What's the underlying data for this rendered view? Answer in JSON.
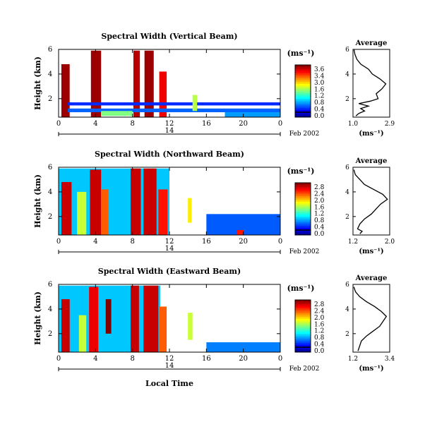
{
  "figure": {
    "xlabel_bottom": "Local Time",
    "date_label": "Feb 2002",
    "day_label": "14",
    "colorbar_unit": "(ms⁻¹)",
    "avg_title": "Average",
    "avg_unit": "(ms⁻¹)",
    "ylabel": "Height (km)"
  },
  "chart_data": [
    {
      "type": "heatmap",
      "title": "Spectral Width (Vertical Beam)",
      "ylabel": "Height (km)",
      "x_ticks": [
        "0",
        "4",
        "8",
        "12",
        "16",
        "20",
        "0"
      ],
      "xlim": [
        0,
        24
      ],
      "y_ticks": [
        "6",
        "4",
        "2"
      ],
      "ylim": [
        0.5,
        6
      ],
      "colorbar": {
        "ticks": [
          "3.6",
          "3.4",
          "3.0",
          "1.6",
          "1.2",
          "0.8",
          "0.4",
          "0.0"
        ],
        "range": [
          0,
          3.6
        ]
      },
      "blocks": [
        {
          "x0": 0.3,
          "x1": 1.2,
          "y0": 0.5,
          "y1": 4.8,
          "v": 3.5
        },
        {
          "x0": 3.5,
          "x1": 4.6,
          "y0": 0.5,
          "y1": 5.9,
          "v": 3.5
        },
        {
          "x0": 8.1,
          "x1": 8.8,
          "y0": 0.5,
          "y1": 5.9,
          "v": 3.4
        },
        {
          "x0": 9.3,
          "x1": 10.3,
          "y0": 0.5,
          "y1": 5.9,
          "v": 3.5
        },
        {
          "x0": 10.9,
          "x1": 11.7,
          "y0": 0.5,
          "y1": 4.2,
          "v": 3.2
        },
        {
          "x0": 1.0,
          "x1": 24.0,
          "y0": 0.9,
          "y1": 1.2,
          "v": 0.8
        },
        {
          "x0": 1.0,
          "x1": 24.0,
          "y0": 1.45,
          "y1": 1.7,
          "v": 0.6
        },
        {
          "x0": 4.6,
          "x1": 8.0,
          "y0": 0.6,
          "y1": 1.0,
          "v": 1.8
        },
        {
          "x0": 14.5,
          "x1": 15.0,
          "y0": 1.0,
          "y1": 2.3,
          "v": 2.0
        },
        {
          "x0": 18.0,
          "x1": 24.0,
          "y0": 0.5,
          "y1": 0.9,
          "v": 1.0
        }
      ],
      "average": {
        "xlim": [
          1.0,
          2.9
        ],
        "x_ticks": [
          "1.0",
          "2.9"
        ],
        "ylim": [
          0.5,
          6
        ],
        "y_ticks": [
          "6",
          "4",
          "2"
        ],
        "profile": [
          [
            1.15,
            0.6
          ],
          [
            1.3,
            0.8
          ],
          [
            1.6,
            1.0
          ],
          [
            1.4,
            1.2
          ],
          [
            1.8,
            1.4
          ],
          [
            1.3,
            1.6
          ],
          [
            1.9,
            1.8
          ],
          [
            2.3,
            2.0
          ],
          [
            2.2,
            2.4
          ],
          [
            2.5,
            2.8
          ],
          [
            2.7,
            3.2
          ],
          [
            2.4,
            3.6
          ],
          [
            2.0,
            4.0
          ],
          [
            1.8,
            4.4
          ],
          [
            1.4,
            4.8
          ],
          [
            1.2,
            5.2
          ],
          [
            1.1,
            5.6
          ],
          [
            1.05,
            6.0
          ]
        ]
      }
    },
    {
      "type": "heatmap",
      "title": "Spectral Width (Northward Beam)",
      "ylabel": "Height (km)",
      "x_ticks": [
        "0",
        "4",
        "8",
        "12",
        "16",
        "20",
        "0"
      ],
      "xlim": [
        0,
        24
      ],
      "y_ticks": [
        "6",
        "4",
        "2"
      ],
      "ylim": [
        0.5,
        6
      ],
      "colorbar": {
        "ticks": [
          "2.8",
          "2.4",
          "2.0",
          "1.6",
          "1.2",
          "0.8",
          "0.4",
          "0.0"
        ],
        "range": [
          0,
          2.8
        ]
      },
      "blocks": [
        {
          "x0": 0.0,
          "x1": 12.0,
          "y0": 0.5,
          "y1": 5.9,
          "v": 0.9
        },
        {
          "x0": 0.3,
          "x1": 1.4,
          "y0": 0.5,
          "y1": 4.8,
          "v": 2.6
        },
        {
          "x0": 2.0,
          "x1": 3.0,
          "y0": 0.5,
          "y1": 4.0,
          "v": 1.6
        },
        {
          "x0": 3.4,
          "x1": 4.6,
          "y0": 0.5,
          "y1": 5.8,
          "v": 2.6
        },
        {
          "x0": 4.6,
          "x1": 5.4,
          "y0": 0.5,
          "y1": 4.2,
          "v": 2.2
        },
        {
          "x0": 7.8,
          "x1": 8.9,
          "y0": 0.5,
          "y1": 5.9,
          "v": 2.6
        },
        {
          "x0": 9.2,
          "x1": 10.6,
          "y0": 0.5,
          "y1": 5.9,
          "v": 2.6
        },
        {
          "x0": 10.8,
          "x1": 11.8,
          "y0": 0.5,
          "y1": 4.2,
          "v": 2.4
        },
        {
          "x0": 14.0,
          "x1": 14.4,
          "y0": 1.5,
          "y1": 3.5,
          "v": 1.8
        },
        {
          "x0": 16.0,
          "x1": 24.0,
          "y0": 0.5,
          "y1": 2.2,
          "v": 0.6
        },
        {
          "x0": 19.3,
          "x1": 20.1,
          "y0": 0.5,
          "y1": 0.9,
          "v": 2.4
        }
      ],
      "average": {
        "xlim": [
          1.2,
          2.0
        ],
        "x_ticks": [
          "1.2",
          "2.0"
        ],
        "ylim": [
          0.5,
          6
        ],
        "y_ticks": [
          "6",
          "4",
          "2"
        ],
        "profile": [
          [
            1.35,
            0.6
          ],
          [
            1.4,
            0.8
          ],
          [
            1.3,
            1.0
          ],
          [
            1.35,
            1.4
          ],
          [
            1.45,
            1.8
          ],
          [
            1.6,
            2.2
          ],
          [
            1.7,
            2.6
          ],
          [
            1.8,
            3.0
          ],
          [
            1.95,
            3.4
          ],
          [
            1.85,
            3.8
          ],
          [
            1.65,
            4.2
          ],
          [
            1.45,
            4.6
          ],
          [
            1.35,
            5.0
          ],
          [
            1.25,
            5.4
          ],
          [
            1.22,
            5.8
          ]
        ]
      }
    },
    {
      "type": "heatmap",
      "title": "Spectral Width (Eastward Beam)",
      "ylabel": "Height (km)",
      "x_ticks": [
        "0",
        "4",
        "8",
        "12",
        "16",
        "20",
        "0"
      ],
      "xlim": [
        0,
        24
      ],
      "y_ticks": [
        "6",
        "4",
        "2"
      ],
      "ylim": [
        0.5,
        6
      ],
      "colorbar": {
        "ticks": [
          "2.8",
          "2.4",
          "2.0",
          "1.6",
          "1.2",
          "0.8",
          "0.4",
          "0.0"
        ],
        "range": [
          0,
          2.8
        ]
      },
      "blocks": [
        {
          "x0": 0.0,
          "x1": 11.0,
          "y0": 0.5,
          "y1": 5.9,
          "v": 0.9
        },
        {
          "x0": 0.3,
          "x1": 1.2,
          "y0": 0.5,
          "y1": 4.8,
          "v": 2.6
        },
        {
          "x0": 2.2,
          "x1": 3.0,
          "y0": 0.5,
          "y1": 3.5,
          "v": 1.6
        },
        {
          "x0": 3.3,
          "x1": 4.3,
          "y0": 0.5,
          "y1": 5.8,
          "v": 2.5
        },
        {
          "x0": 5.1,
          "x1": 5.7,
          "y0": 2.0,
          "y1": 4.8,
          "v": 2.8
        },
        {
          "x0": 7.8,
          "x1": 8.7,
          "y0": 0.5,
          "y1": 5.9,
          "v": 2.6
        },
        {
          "x0": 9.2,
          "x1": 10.8,
          "y0": 0.5,
          "y1": 5.9,
          "v": 2.6
        },
        {
          "x0": 10.9,
          "x1": 11.7,
          "y0": 0.5,
          "y1": 4.2,
          "v": 2.2
        },
        {
          "x0": 14.0,
          "x1": 14.5,
          "y0": 1.5,
          "y1": 3.7,
          "v": 1.6
        },
        {
          "x0": 16.0,
          "x1": 24.0,
          "y0": 0.5,
          "y1": 1.3,
          "v": 0.7
        }
      ],
      "average": {
        "xlim": [
          1.2,
          3.4
        ],
        "x_ticks": [
          "1.2",
          "3.4"
        ],
        "ylim": [
          0.5,
          6
        ],
        "y_ticks": [
          "6",
          "4",
          "2"
        ],
        "profile": [
          [
            1.5,
            0.6
          ],
          [
            1.6,
            1.0
          ],
          [
            1.7,
            1.4
          ],
          [
            2.0,
            1.8
          ],
          [
            2.4,
            2.2
          ],
          [
            2.8,
            2.6
          ],
          [
            3.0,
            3.0
          ],
          [
            3.2,
            3.4
          ],
          [
            2.9,
            3.8
          ],
          [
            2.5,
            4.2
          ],
          [
            2.0,
            4.6
          ],
          [
            1.6,
            5.0
          ],
          [
            1.35,
            5.4
          ],
          [
            1.25,
            5.8
          ]
        ]
      }
    }
  ]
}
